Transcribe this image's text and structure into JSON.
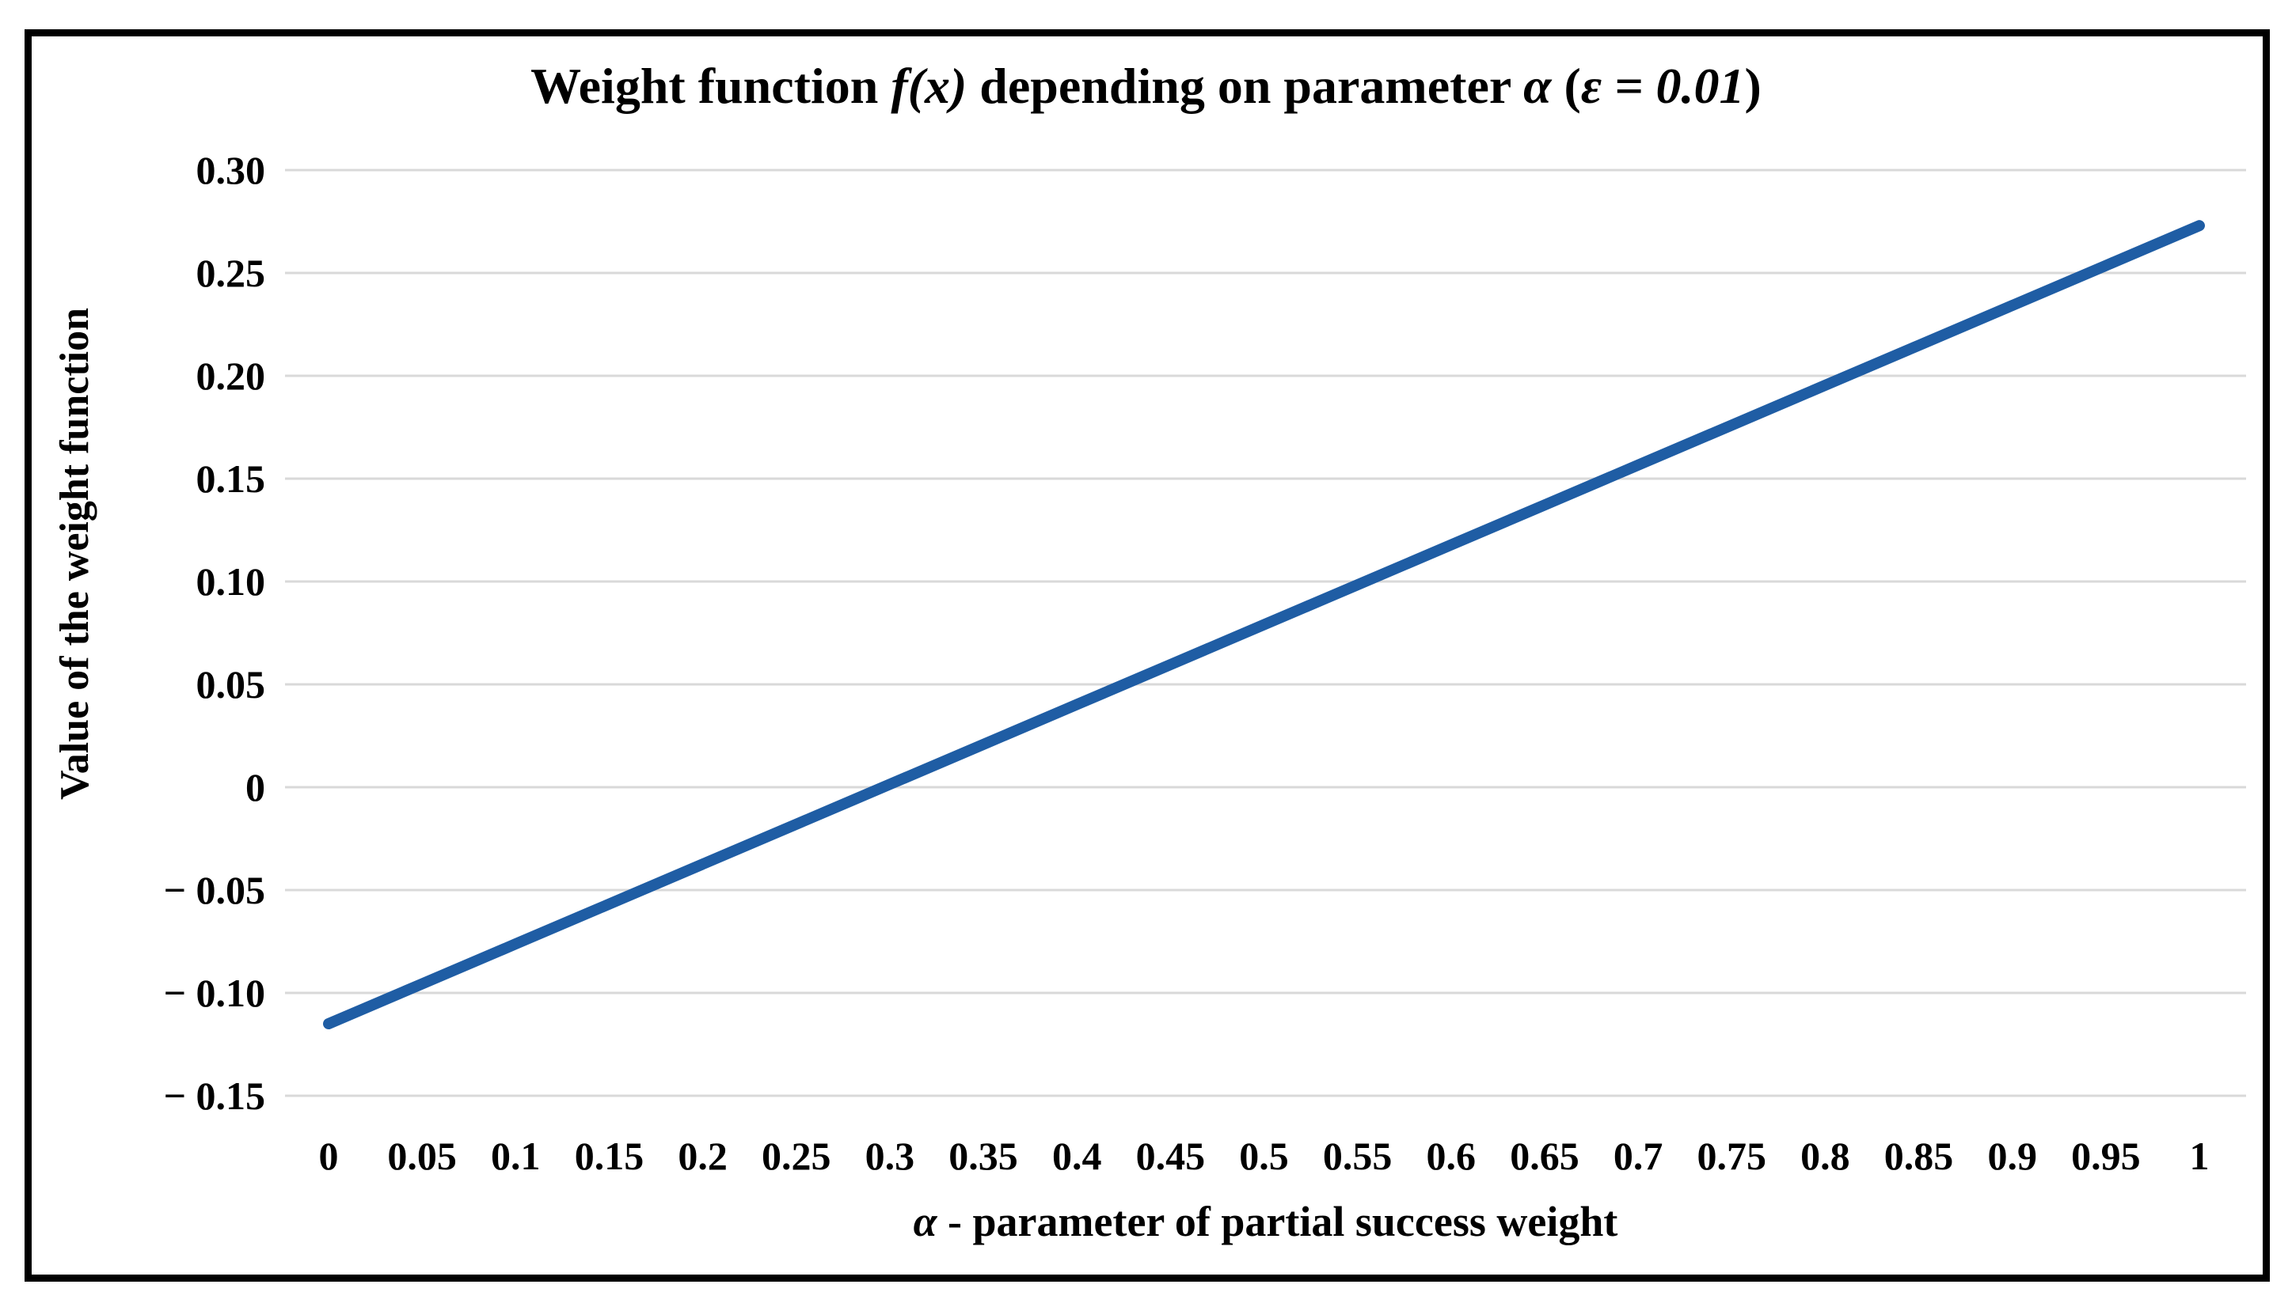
{
  "figure": {
    "background_color": "#ffffff",
    "border_color": "#000000"
  },
  "chart_data": {
    "type": "line",
    "title": "Weight function f(x) depending on parameter α (ε = 0.01)",
    "title_parts": [
      {
        "text": "Weight function ",
        "italic": false
      },
      {
        "text": "f(x)",
        "italic": true
      },
      {
        "text": " depending on parameter ",
        "italic": false
      },
      {
        "text": "α",
        "italic": true
      },
      {
        "text": " (",
        "italic": false
      },
      {
        "text": "ε = 0.01",
        "italic": true
      },
      {
        "text": ")",
        "italic": false
      }
    ],
    "xlabel": "α - parameter of partial success weight",
    "xlabel_parts": [
      {
        "text": "α",
        "italic": true
      },
      {
        "text": " - parameter of partial success weight",
        "italic": false
      }
    ],
    "ylabel": "Value of the weight function",
    "x": [
      0,
      0.05,
      0.1,
      0.15,
      0.2,
      0.25,
      0.3,
      0.35,
      0.4,
      0.45,
      0.5,
      0.55,
      0.6,
      0.65,
      0.7,
      0.75,
      0.8,
      0.85,
      0.9,
      0.95,
      1
    ],
    "y": [
      -0.115,
      -0.0956,
      -0.0762,
      -0.0568,
      -0.0374,
      -0.018,
      0.0014,
      0.0208,
      0.0402,
      0.0596,
      0.079,
      0.0984,
      0.1178,
      0.1372,
      0.1566,
      0.176,
      0.1954,
      0.2148,
      0.2342,
      0.2536,
      0.273
    ],
    "x_tick_labels": [
      "0",
      "0.05",
      "0.1",
      "0.15",
      "0.2",
      "0.25",
      "0.3",
      "0.35",
      "0.4",
      "0.45",
      "0.5",
      "0.55",
      "0.6",
      "0.65",
      "0.7",
      "0.75",
      "0.8",
      "0.85",
      "0.9",
      "0.95",
      "1"
    ],
    "y_ticks": [
      0.3,
      0.25,
      0.2,
      0.15,
      0.1,
      0.05,
      0,
      -0.05,
      -0.1,
      -0.15
    ],
    "y_tick_labels": [
      "0.30",
      "0.25",
      "0.20",
      "0.15",
      "0.10",
      "0.05",
      "0",
      "− 0.05",
      "− 0.10",
      "− 0.15"
    ],
    "xlim": [
      0,
      1
    ],
    "ylim": [
      -0.15,
      0.3
    ],
    "grid": true,
    "legend": "none",
    "line_color": "#1F5DA4",
    "gridline_color": "#D9D9D9"
  }
}
